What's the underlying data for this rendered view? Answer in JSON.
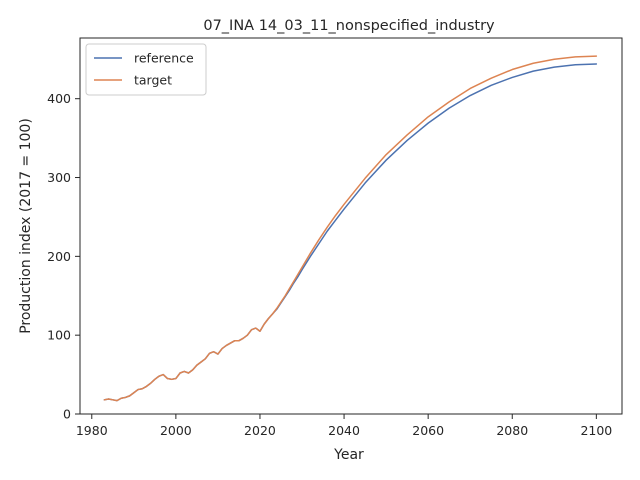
{
  "chart_data": {
    "type": "line",
    "title": "07_INA 14_03_11_nonspecified_industry",
    "xlabel": "Year",
    "ylabel": "Production index (2017 = 100)",
    "xlim": [
      1977.2,
      2106.1
    ],
    "ylim": [
      0,
      477
    ],
    "xticks": [
      1980,
      2000,
      2020,
      2040,
      2060,
      2080,
      2100
    ],
    "yticks": [
      0,
      100,
      200,
      300,
      400
    ],
    "grid": false,
    "legend_position": "top-left",
    "series": [
      {
        "name": "reference",
        "color": "#4c72b0",
        "points": [
          [
            1983,
            18
          ],
          [
            1984,
            19
          ],
          [
            1985,
            18
          ],
          [
            1986,
            17
          ],
          [
            1987,
            20
          ],
          [
            1988,
            21
          ],
          [
            1989,
            23
          ],
          [
            1990,
            27
          ],
          [
            1991,
            31
          ],
          [
            1992,
            32
          ],
          [
            1993,
            35
          ],
          [
            1994,
            39
          ],
          [
            1995,
            44
          ],
          [
            1996,
            48
          ],
          [
            1997,
            50
          ],
          [
            1998,
            45
          ],
          [
            1999,
            44
          ],
          [
            2000,
            45
          ],
          [
            2001,
            52
          ],
          [
            2002,
            54
          ],
          [
            2003,
            52
          ],
          [
            2004,
            56
          ],
          [
            2005,
            62
          ],
          [
            2006,
            66
          ],
          [
            2007,
            70
          ],
          [
            2008,
            77
          ],
          [
            2009,
            79
          ],
          [
            2010,
            76
          ],
          [
            2011,
            83
          ],
          [
            2012,
            87
          ],
          [
            2013,
            90
          ],
          [
            2014,
            93
          ],
          [
            2015,
            93
          ],
          [
            2016,
            96
          ],
          [
            2017,
            100
          ],
          [
            2018,
            107
          ],
          [
            2019,
            109
          ],
          [
            2020,
            105
          ],
          [
            2021,
            114
          ],
          [
            2022,
            121
          ],
          [
            2023,
            127
          ],
          [
            2024,
            133
          ],
          [
            2025,
            141
          ],
          [
            2026,
            149
          ],
          [
            2027,
            157
          ],
          [
            2028,
            166
          ],
          [
            2029,
            174
          ],
          [
            2030,
            183
          ],
          [
            2032,
            200
          ],
          [
            2034,
            216
          ],
          [
            2036,
            232
          ],
          [
            2038,
            246
          ],
          [
            2040,
            260
          ],
          [
            2045,
            293
          ],
          [
            2050,
            322
          ],
          [
            2055,
            347
          ],
          [
            2060,
            369
          ],
          [
            2065,
            388
          ],
          [
            2070,
            404
          ],
          [
            2075,
            417
          ],
          [
            2080,
            427
          ],
          [
            2085,
            435
          ],
          [
            2090,
            440
          ],
          [
            2095,
            443
          ],
          [
            2100,
            444
          ]
        ]
      },
      {
        "name": "target",
        "color": "#dd8452",
        "points": [
          [
            1983,
            18
          ],
          [
            1984,
            19
          ],
          [
            1985,
            18
          ],
          [
            1986,
            17
          ],
          [
            1987,
            20
          ],
          [
            1988,
            21
          ],
          [
            1989,
            23
          ],
          [
            1990,
            27
          ],
          [
            1991,
            31
          ],
          [
            1992,
            32
          ],
          [
            1993,
            35
          ],
          [
            1994,
            39
          ],
          [
            1995,
            44
          ],
          [
            1996,
            48
          ],
          [
            1997,
            50
          ],
          [
            1998,
            45
          ],
          [
            1999,
            44
          ],
          [
            2000,
            45
          ],
          [
            2001,
            52
          ],
          [
            2002,
            54
          ],
          [
            2003,
            52
          ],
          [
            2004,
            56
          ],
          [
            2005,
            62
          ],
          [
            2006,
            66
          ],
          [
            2007,
            70
          ],
          [
            2008,
            77
          ],
          [
            2009,
            79
          ],
          [
            2010,
            76
          ],
          [
            2011,
            83
          ],
          [
            2012,
            87
          ],
          [
            2013,
            90
          ],
          [
            2014,
            93
          ],
          [
            2015,
            93
          ],
          [
            2016,
            96
          ],
          [
            2017,
            100
          ],
          [
            2018,
            107
          ],
          [
            2019,
            109
          ],
          [
            2020,
            105
          ],
          [
            2021,
            114
          ],
          [
            2022,
            121
          ],
          [
            2023,
            127
          ],
          [
            2024,
            134
          ],
          [
            2025,
            142
          ],
          [
            2026,
            150
          ],
          [
            2027,
            159
          ],
          [
            2028,
            168
          ],
          [
            2029,
            177
          ],
          [
            2030,
            186
          ],
          [
            2032,
            204
          ],
          [
            2034,
            221
          ],
          [
            2036,
            237
          ],
          [
            2038,
            252
          ],
          [
            2040,
            266
          ],
          [
            2045,
            299
          ],
          [
            2050,
            329
          ],
          [
            2055,
            354
          ],
          [
            2060,
            377
          ],
          [
            2065,
            396
          ],
          [
            2070,
            413
          ],
          [
            2075,
            426
          ],
          [
            2080,
            437
          ],
          [
            2085,
            445
          ],
          [
            2090,
            450
          ],
          [
            2095,
            453
          ],
          [
            2100,
            454
          ]
        ]
      }
    ]
  }
}
